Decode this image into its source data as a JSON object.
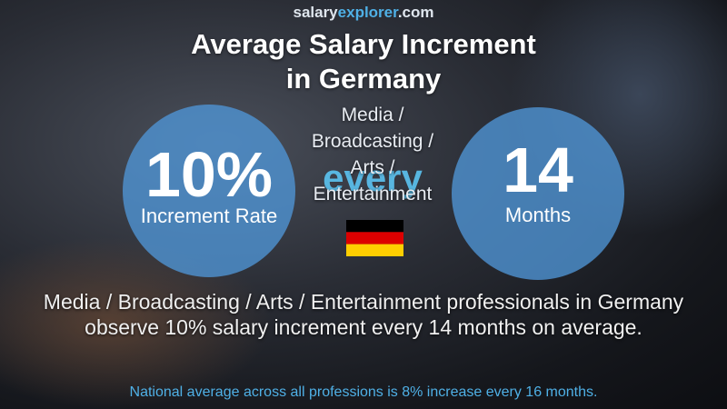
{
  "brand": [
    "salary",
    "explorer",
    ".com"
  ],
  "title": [
    "Average Salary Increment",
    "in Germany"
  ],
  "category": [
    "Media /",
    "Broadcasting /",
    "Arts /",
    "Entertainment"
  ],
  "left_circle": {
    "value": "10%",
    "label": "Increment Rate"
  },
  "connector": "every",
  "right_circle": {
    "value": "14",
    "label": "Months"
  },
  "description": "Media / Broadcasting / Arts / Entertainment professionals in Germany observe 10% salary increment every 14 months on average.",
  "footer": "National average across all professions is 8% increase every 16 months."
}
